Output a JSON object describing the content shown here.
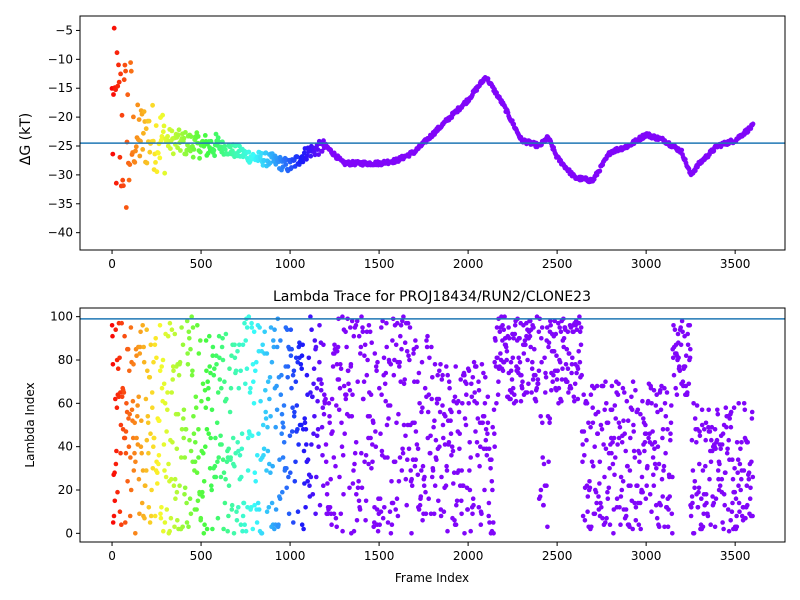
{
  "chart_data": [
    {
      "type": "scatter",
      "title": "",
      "xlabel": "",
      "ylabel": "ΔG (kT)",
      "xlim": [
        -180,
        3780
      ],
      "ylim": [
        -43,
        -2.5
      ],
      "xticks": [
        0,
        500,
        1000,
        1500,
        2000,
        2500,
        3000,
        3500
      ],
      "yticks": [
        -40,
        -35,
        -30,
        -25,
        -20,
        -15,
        -10,
        -5
      ],
      "ytick_labels": [
        "−40",
        "−35",
        "−30",
        "−25",
        "−20",
        "−15",
        "−10",
        "−5"
      ],
      "hline": {
        "y": -24.5,
        "color": "#1f77b4"
      },
      "colormap": "rainbow, reversed with frame index (red at frame 0 → violet after ~1200)",
      "x_end": 3600,
      "trend": [
        [
          0,
          -20
        ],
        [
          100,
          -24
        ],
        [
          200,
          -23
        ],
        [
          300,
          -24
        ],
        [
          400,
          -24.5
        ],
        [
          500,
          -25
        ],
        [
          600,
          -25
        ],
        [
          700,
          -26
        ],
        [
          800,
          -27
        ],
        [
          900,
          -27.5
        ],
        [
          1000,
          -28.5
        ],
        [
          1100,
          -26
        ],
        [
          1200,
          -25
        ],
        [
          1300,
          -28
        ],
        [
          1400,
          -28
        ],
        [
          1500,
          -28
        ],
        [
          1600,
          -27.5
        ],
        [
          1700,
          -26
        ],
        [
          1800,
          -23
        ],
        [
          1900,
          -20
        ],
        [
          2000,
          -17
        ],
        [
          2100,
          -13
        ],
        [
          2200,
          -18
        ],
        [
          2300,
          -24
        ],
        [
          2400,
          -25
        ],
        [
          2450,
          -23.5
        ],
        [
          2500,
          -27
        ],
        [
          2600,
          -30.5
        ],
        [
          2700,
          -31
        ],
        [
          2800,
          -26
        ],
        [
          2900,
          -25
        ],
        [
          3000,
          -23
        ],
        [
          3100,
          -24
        ],
        [
          3200,
          -26
        ],
        [
          3250,
          -30
        ],
        [
          3300,
          -28
        ],
        [
          3400,
          -25
        ],
        [
          3500,
          -24
        ],
        [
          3600,
          -21.5
        ]
      ]
    },
    {
      "type": "scatter",
      "title": "Lambda Trace for PROJ18434/RUN2/CLONE23",
      "xlabel": "Frame Index",
      "ylabel": "Lambda Index",
      "xlim": [
        -180,
        3780
      ],
      "ylim": [
        -4,
        104
      ],
      "xticks": [
        0,
        500,
        1000,
        1500,
        2000,
        2500,
        3000,
        3500
      ],
      "yticks": [
        0,
        20,
        40,
        60,
        80,
        100
      ],
      "hline": {
        "y": 99,
        "color": "#1f77b4"
      },
      "colormap": "rainbow, reversed with frame index (red at frame 0 → violet after ~1200)",
      "x_end": 3600,
      "lambda_regions": [
        {
          "x_from": 0,
          "x_to": 1250,
          "lambda_range": [
            0,
            100
          ]
        },
        {
          "x_from": 1250,
          "x_to": 1800,
          "lambda_range": [
            0,
            100
          ]
        },
        {
          "x_from": 1800,
          "x_to": 2150,
          "lambda_range": [
            0,
            80
          ]
        },
        {
          "x_from": 2150,
          "x_to": 2400,
          "lambda_range": [
            60,
            100
          ]
        },
        {
          "x_from": 2400,
          "x_to": 2460,
          "lambda_range": [
            0,
            100
          ]
        },
        {
          "x_from": 2460,
          "x_to": 2640,
          "lambda_range": [
            60,
            100
          ]
        },
        {
          "x_from": 2640,
          "x_to": 3150,
          "lambda_range": [
            0,
            70
          ]
        },
        {
          "x_from": 3150,
          "x_to": 3250,
          "lambda_range": [
            60,
            100
          ]
        },
        {
          "x_from": 3250,
          "x_to": 3600,
          "lambda_range": [
            0,
            60
          ]
        }
      ]
    }
  ]
}
